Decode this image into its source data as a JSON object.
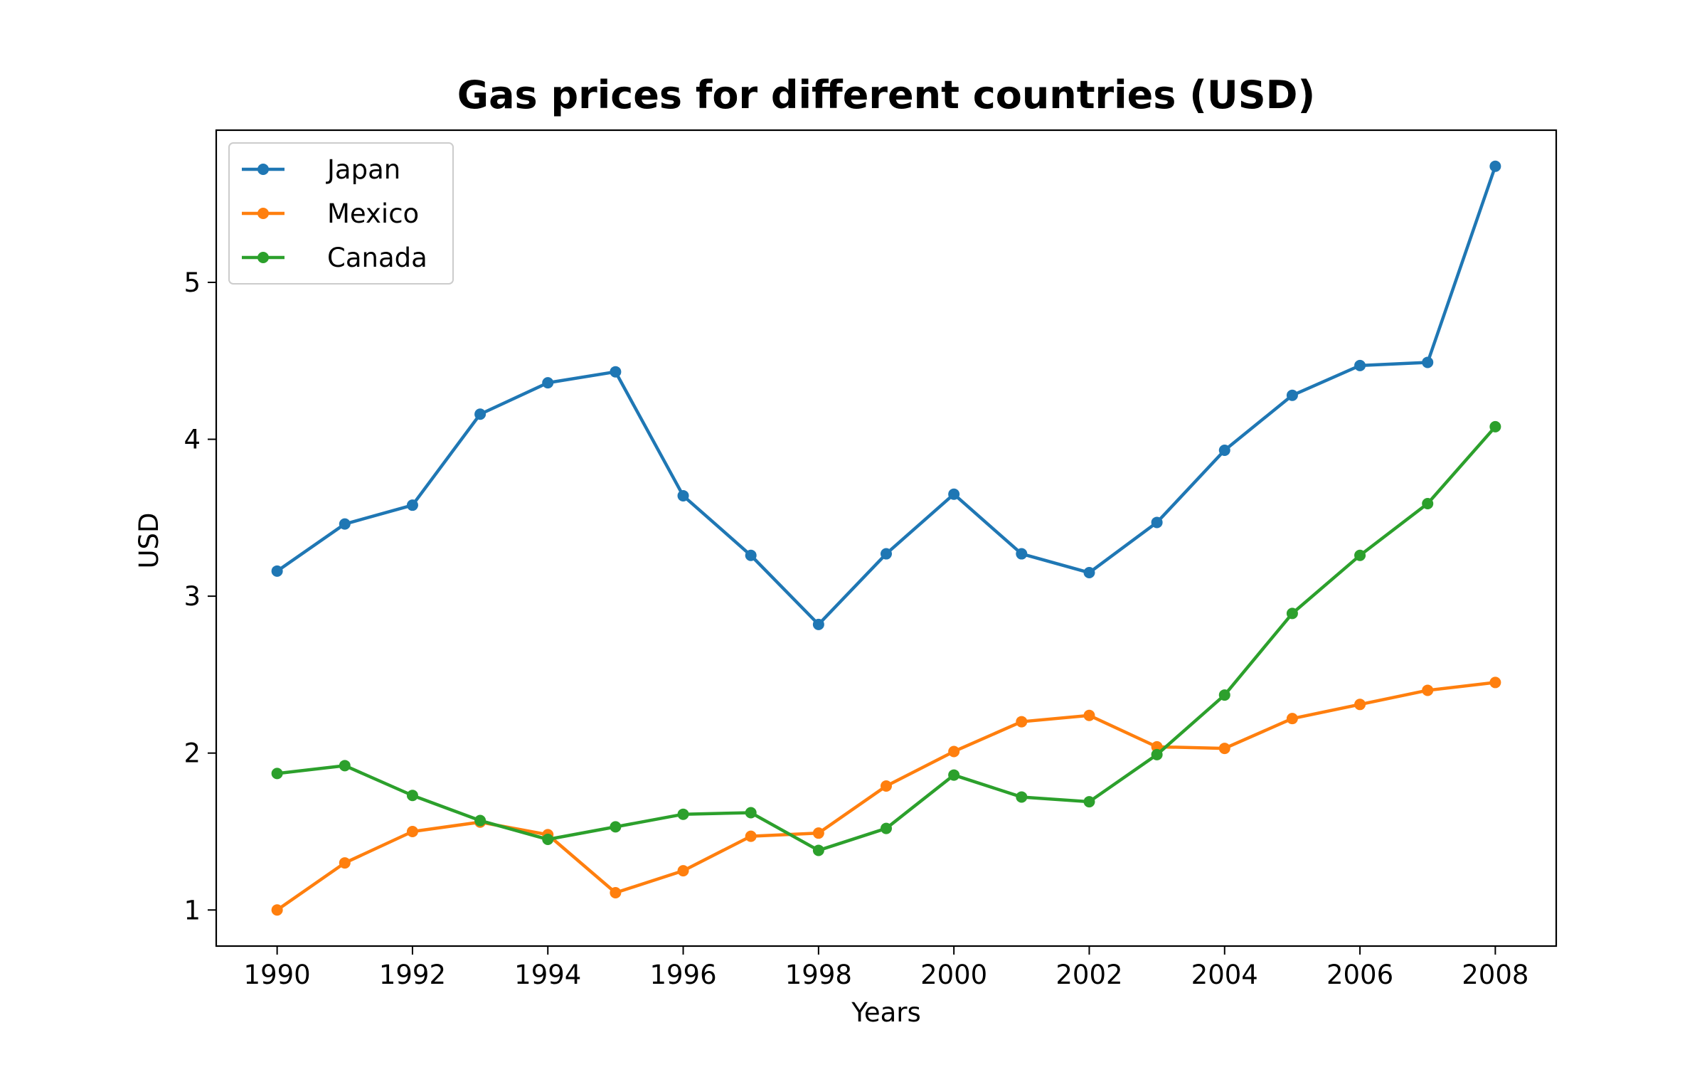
{
  "chart_data": {
    "type": "line",
    "title": "Gas prices for different countries (USD)",
    "xlabel": "Years",
    "ylabel": "USD",
    "x": [
      1990,
      1991,
      1992,
      1993,
      1994,
      1995,
      1996,
      1997,
      1998,
      1999,
      2000,
      2001,
      2002,
      2003,
      2004,
      2005,
      2006,
      2007,
      2008
    ],
    "xticks": [
      1990,
      1992,
      1994,
      1996,
      1998,
      2000,
      2002,
      2004,
      2006,
      2008
    ],
    "yticks": [
      1,
      2,
      3,
      4,
      5
    ],
    "xlim": [
      1989.1,
      2008.9
    ],
    "ylim": [
      0.77,
      5.97
    ],
    "grid": false,
    "legend_position": "top-left",
    "series": [
      {
        "name": "Japan",
        "color": "#1f77b4",
        "marker": "circle",
        "values": [
          3.16,
          3.46,
          3.58,
          4.16,
          4.36,
          4.43,
          3.64,
          3.26,
          2.82,
          3.27,
          3.65,
          3.27,
          3.15,
          3.47,
          3.93,
          4.28,
          4.47,
          4.49,
          5.74
        ]
      },
      {
        "name": "Mexico",
        "color": "#ff7f0e",
        "marker": "circle",
        "values": [
          1.0,
          1.3,
          1.5,
          1.56,
          1.48,
          1.11,
          1.25,
          1.47,
          1.49,
          1.79,
          2.01,
          2.2,
          2.24,
          2.04,
          2.03,
          2.22,
          2.31,
          2.4,
          2.45
        ]
      },
      {
        "name": "Canada",
        "color": "#2ca02c",
        "marker": "circle",
        "values": [
          1.87,
          1.92,
          1.73,
          1.57,
          1.45,
          1.53,
          1.61,
          1.62,
          1.38,
          1.52,
          1.86,
          1.72,
          1.69,
          1.99,
          2.37,
          2.89,
          3.26,
          3.59,
          4.08
        ]
      }
    ]
  }
}
